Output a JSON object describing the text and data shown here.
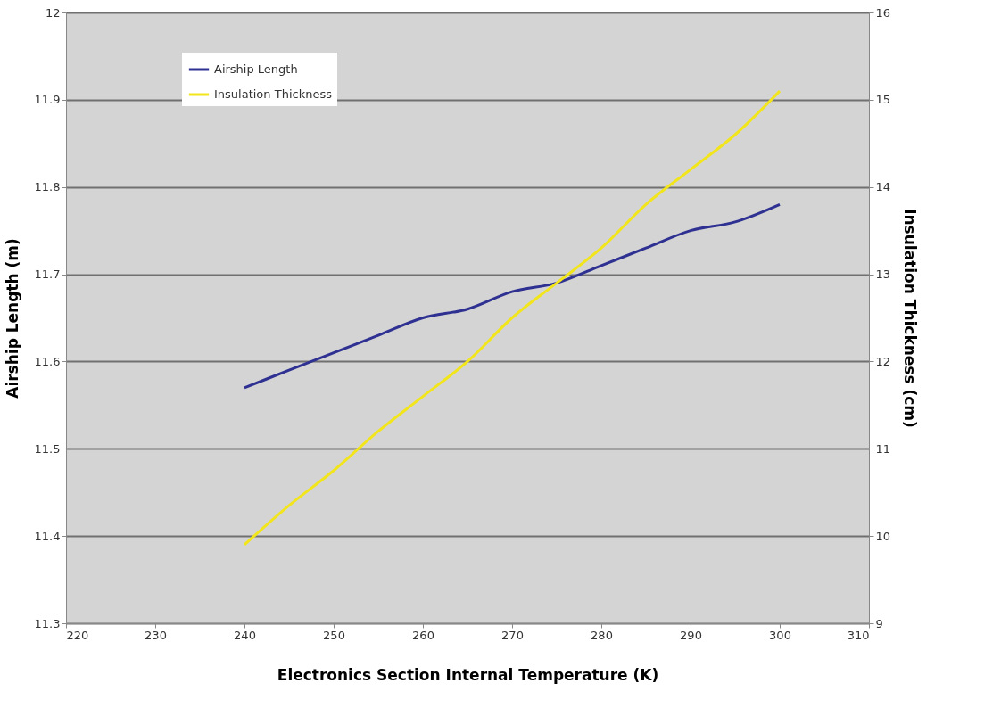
{
  "chart_data": {
    "type": "line",
    "xlabel": "Electronics Section Internal Temperature (K)",
    "ylabel": "Airship Length (m)",
    "y2label": "Insulation Thickness (cm)",
    "x": [
      240,
      245,
      250,
      255,
      260,
      265,
      270,
      275,
      280,
      285,
      290,
      295,
      300
    ],
    "series": [
      {
        "name": "Airship Length",
        "color": "#2e3192",
        "values": [
          11.57,
          11.59,
          11.61,
          11.63,
          11.65,
          11.66,
          11.68,
          11.69,
          11.71,
          11.73,
          11.75,
          11.76,
          11.78
        ]
      },
      {
        "name": "Insulation Thickness",
        "color": "#f2e51c",
        "axis": "y2",
        "values": [
          9.9,
          10.35,
          10.75,
          11.2,
          11.6,
          12.0,
          12.5,
          12.9,
          13.3,
          13.8,
          14.2,
          14.6,
          15.1
        ]
      }
    ],
    "xlim": [
      220,
      310
    ],
    "xticks": [
      220,
      230,
      240,
      250,
      260,
      270,
      280,
      290,
      300,
      310
    ],
    "ylim": [
      11.3,
      12
    ],
    "yticks": [
      11.3,
      11.4,
      11.5,
      11.6,
      11.7,
      11.8,
      11.9,
      12
    ],
    "y2lim": [
      9,
      16
    ],
    "y2ticks": [
      9,
      10,
      11,
      12,
      13,
      14,
      15,
      16
    ],
    "grid": "y",
    "legend": "top left",
    "marker": "none",
    "line_style": "solid"
  }
}
